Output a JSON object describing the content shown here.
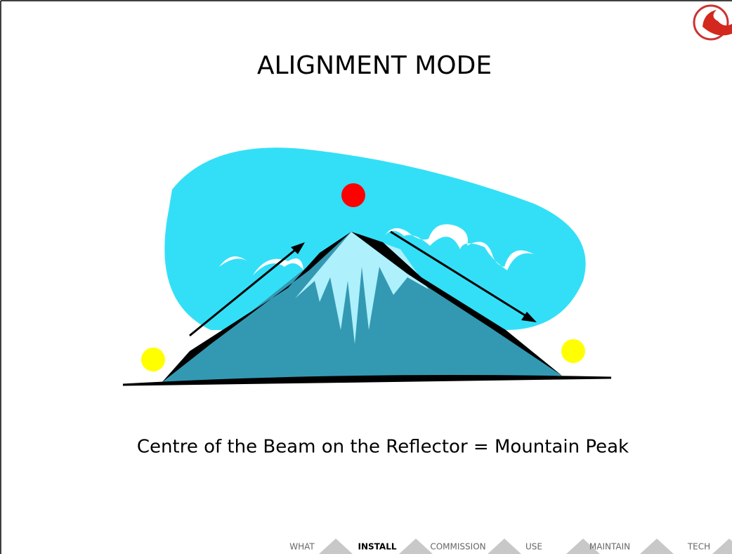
{
  "header": {
    "title": "ALIGNMENT MODE"
  },
  "caption": "Centre of the Beam on the Reflector = Mountain Peak",
  "nav": {
    "items": [
      {
        "label": "WHAT"
      },
      {
        "label": "INSTALL",
        "active": true
      },
      {
        "label": "COMMISSION"
      },
      {
        "label": "USE"
      },
      {
        "label": "MAINTAIN"
      },
      {
        "label": "TECH"
      }
    ]
  }
}
